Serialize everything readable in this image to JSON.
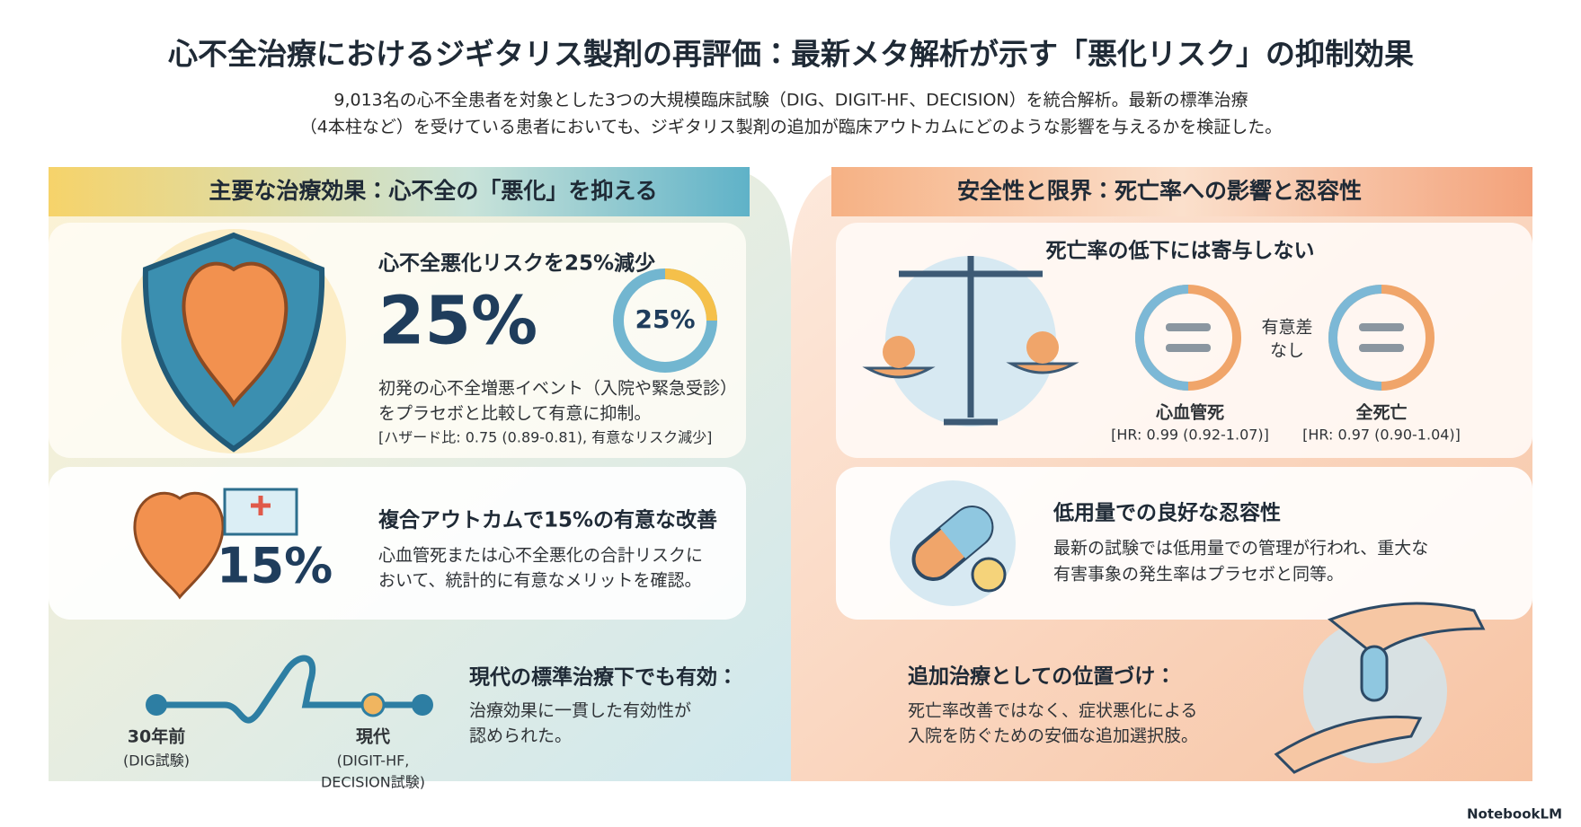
{
  "header": {
    "title": "心不全治療におけるジギタリス製剤の再評価：最新メタ解析が示す「悪化リスク」の抑制効果",
    "subtitle": [
      "9,013名の心不全患者を対象とした3つの大規模臨床試験（DIG、DIGIT-HF、DECISION）を統合解析。最新の標準治療",
      "（4本柱など）を受けている患者においても、ジギタリス製剤の追加が臨床アウトカムにどのような影響を与えるかを検証した。"
    ]
  },
  "left": {
    "heading": "主要な治療効果：心不全の「悪化」を抑える",
    "risk": {
      "title": "心不全悪化リスクを25%減少",
      "big": "25%",
      "ring": "25%",
      "body": [
        "初発の心不全増悪イベント（入院や緊急受診）",
        "をプラセボと比較して有意に抑制。"
      ],
      "note": "[ハザード比: 0.75 (0.89-0.81), 有意なリスク減少]"
    },
    "composite": {
      "title": "複合アウトカムで15%の有意な改善",
      "big": "15%",
      "body": [
        "心血管死または心不全悪化の合計リスクに",
        "おいて、統計的に有意なメリットを確認。"
      ]
    },
    "modern": {
      "title": "現代の標準治療下でも有効：",
      "body": [
        "治療効果に一貫した有効性が",
        "認められた。"
      ],
      "past": {
        "label": "30年前",
        "trial": "(DIG試験)"
      },
      "now": {
        "label": "現代",
        "trial": [
          "(DIGIT-HF,",
          "DECISION試験)"
        ]
      }
    }
  },
  "right": {
    "heading": "安全性と限界：死亡率への影響と忍容性",
    "mortality": {
      "title": "死亡率の低下には寄与しない",
      "difference": [
        "有意差",
        "なし"
      ],
      "outcomes": [
        {
          "label": "心血管死",
          "hr": "[HR: 0.99 (0.92-1.07)]"
        },
        {
          "label": "全死亡",
          "hr": "[HR: 0.97 (0.90-1.04)]"
        }
      ]
    },
    "tolerability": {
      "title": "低用量での良好な忍容性",
      "body": [
        "最新の試験では低用量での管理が行われ、重大な",
        "有害事象の発生率はプラセボと同等。"
      ]
    },
    "position": {
      "title": "追加治療としての位置づけ：",
      "body": [
        "死亡率改善ではなく、症状悪化による",
        "入院を防ぐための安価な追加選択肢。"
      ]
    }
  },
  "footer": {
    "brand": "NotebookLM"
  }
}
